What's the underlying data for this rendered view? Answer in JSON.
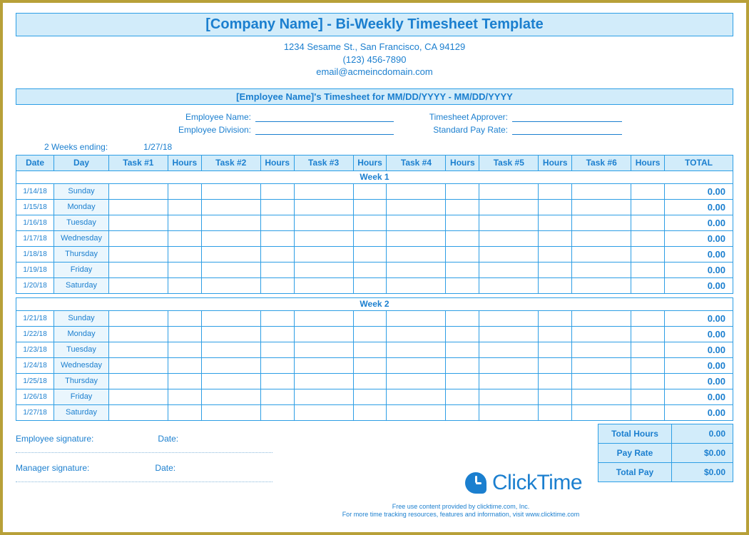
{
  "colors": {
    "outer_border": "#b8a038",
    "page_bg": "#ffffff",
    "accent": "#1b7fcf",
    "cell_border": "#2d9ee5",
    "header_fill": "#d2ecfa",
    "day_fill": "#eaf6fd"
  },
  "title": "[Company Name] - Bi-Weekly Timesheet Template",
  "company": {
    "address": "1234 Sesame St.,  San Francisco, CA 94129",
    "phone": "(123) 456-7890",
    "email": "email@acmeincdomain.com"
  },
  "subtitle": "[Employee Name]'s Timesheet for MM/DD/YYYY - MM/DD/YYYY",
  "meta_labels": {
    "employee_name": "Employee Name:",
    "employee_division": "Employee Division:",
    "timesheet_approver": "Timesheet Approver:",
    "standard_pay_rate": "Standard Pay Rate:"
  },
  "ending": {
    "label": "2 Weeks ending:",
    "value": "1/27/18"
  },
  "columns": [
    "Date",
    "Day",
    "Task #1",
    "Hours",
    "Task #2",
    "Hours",
    "Task #3",
    "Hours",
    "Task #4",
    "Hours",
    "Task #5",
    "Hours",
    "Task #6",
    "Hours",
    "TOTAL"
  ],
  "week_labels": [
    "Week 1",
    "Week 2"
  ],
  "weeks": [
    [
      {
        "date": "1/14/18",
        "day": "Sunday",
        "total": "0.00"
      },
      {
        "date": "1/15/18",
        "day": "Monday",
        "total": "0.00"
      },
      {
        "date": "1/16/18",
        "day": "Tuesday",
        "total": "0.00"
      },
      {
        "date": "1/17/18",
        "day": "Wednesday",
        "total": "0.00"
      },
      {
        "date": "1/18/18",
        "day": "Thursday",
        "total": "0.00"
      },
      {
        "date": "1/19/18",
        "day": "Friday",
        "total": "0.00"
      },
      {
        "date": "1/20/18",
        "day": "Saturday",
        "total": "0.00"
      }
    ],
    [
      {
        "date": "1/21/18",
        "day": "Sunday",
        "total": "0.00"
      },
      {
        "date": "1/22/18",
        "day": "Monday",
        "total": "0.00"
      },
      {
        "date": "1/23/18",
        "day": "Tuesday",
        "total": "0.00"
      },
      {
        "date": "1/24/18",
        "day": "Wednesday",
        "total": "0.00"
      },
      {
        "date": "1/25/18",
        "day": "Thursday",
        "total": "0.00"
      },
      {
        "date": "1/26/18",
        "day": "Friday",
        "total": "0.00"
      },
      {
        "date": "1/27/18",
        "day": "Saturday",
        "total": "0.00"
      }
    ]
  ],
  "totals": {
    "total_hours_label": "Total Hours",
    "total_hours_value": "0.00",
    "pay_rate_label": "Pay Rate",
    "pay_rate_value": "$0.00",
    "total_pay_label": "Total Pay",
    "total_pay_value": "$0.00"
  },
  "signatures": {
    "employee_label": "Employee signature:",
    "manager_label": "Manager signature:",
    "date_label": "Date:"
  },
  "brand": "ClickTime",
  "fineprint1": "Free use content provided by clicktime.com, Inc.",
  "fineprint2": "For more time tracking resources, features and information, visit www.clicktime.com"
}
